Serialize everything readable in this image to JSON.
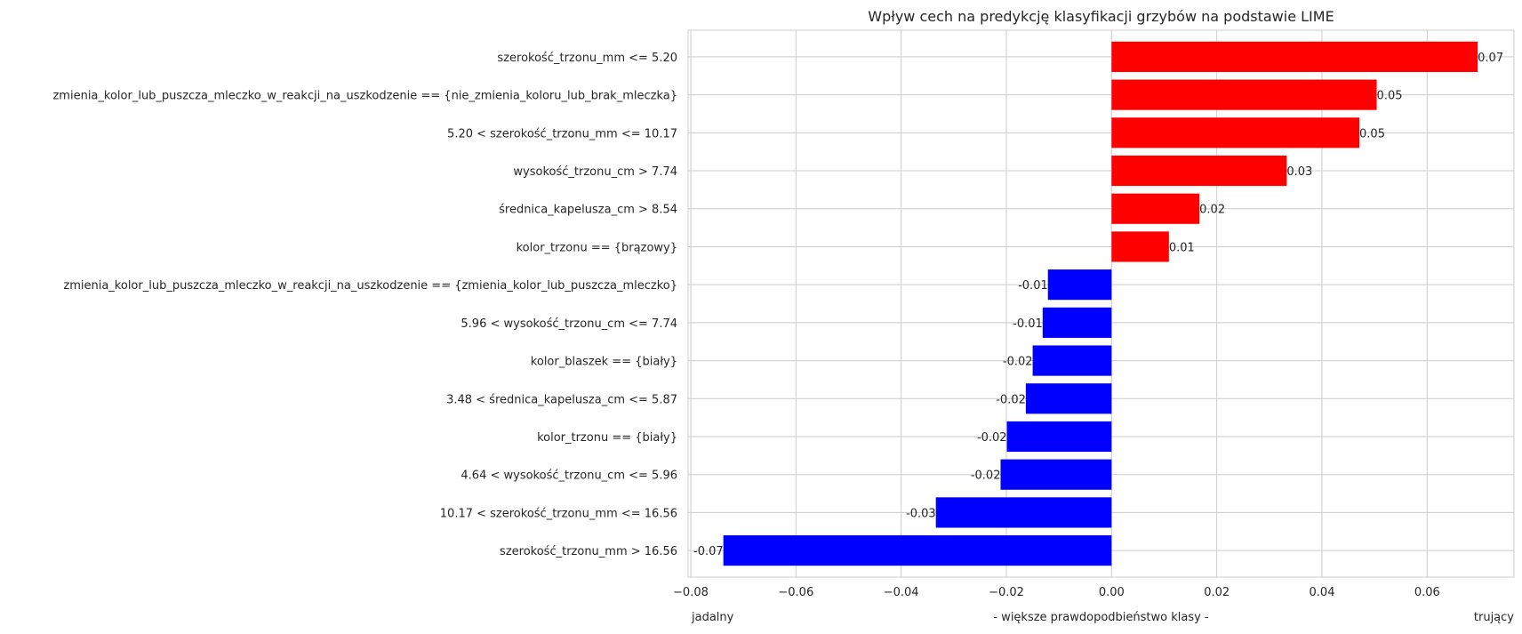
{
  "chart_data": {
    "type": "bar",
    "orientation": "horizontal",
    "title": "Wpływ cech na predykcję klasyfikacji grzybów na podstawie LIME",
    "xlabel": "- większe prawdopodbieństwo klasy -",
    "xlabel_left": "jadalny",
    "xlabel_right": "trujący",
    "ylabel": "",
    "xlim": [
      -0.0805,
      0.0765
    ],
    "xticks": [
      -0.08,
      -0.06,
      -0.04,
      -0.02,
      0.0,
      0.02,
      0.04,
      0.06
    ],
    "xtick_labels": [
      "−0.08",
      "−0.06",
      "−0.04",
      "−0.02",
      "0.00",
      "0.02",
      "0.04",
      "0.06"
    ],
    "grid": true,
    "positive_color": "#ff0000",
    "negative_color": "#0000ff",
    "categories": [
      "szerokość_trzonu_mm <= 5.20",
      "zmienia_kolor_lub_puszcza_mleczko_w_reakcji_na_uszkodzenie == {nie_zmienia_koloru_lub_brak_mleczka}",
      "5.20 < szerokość_trzonu_mm <= 10.17",
      "wysokość_trzonu_cm > 7.74",
      "średnica_kapelusza_cm > 8.54",
      "kolor_trzonu == {brązowy}",
      "zmienia_kolor_lub_puszcza_mleczko_w_reakcji_na_uszkodzenie == {zmienia_kolor_lub_puszcza_mleczko}",
      "5.96 < wysokość_trzonu_cm <= 7.74",
      "kolor_blaszek == {biały}",
      "3.48 < średnica_kapelusza_cm <= 5.87",
      "kolor_trzonu == {biały}",
      "4.64 < wysokość_trzonu_cm <= 5.96",
      "10.17 < szerokość_trzonu_mm <= 16.56",
      "szerokość_trzonu_mm > 16.56"
    ],
    "values": [
      0.0696,
      0.0504,
      0.0471,
      0.0333,
      0.0167,
      0.0109,
      -0.0121,
      -0.0131,
      -0.015,
      -0.0163,
      -0.0199,
      -0.0211,
      -0.0334,
      -0.0738
    ],
    "value_labels": [
      "0.07",
      "0.05",
      "0.05",
      "0.03",
      "0.02",
      "0.01",
      "-0.01",
      "-0.01",
      "-0.02",
      "-0.02",
      "-0.02",
      "-0.02",
      "-0.03",
      "-0.07"
    ]
  }
}
